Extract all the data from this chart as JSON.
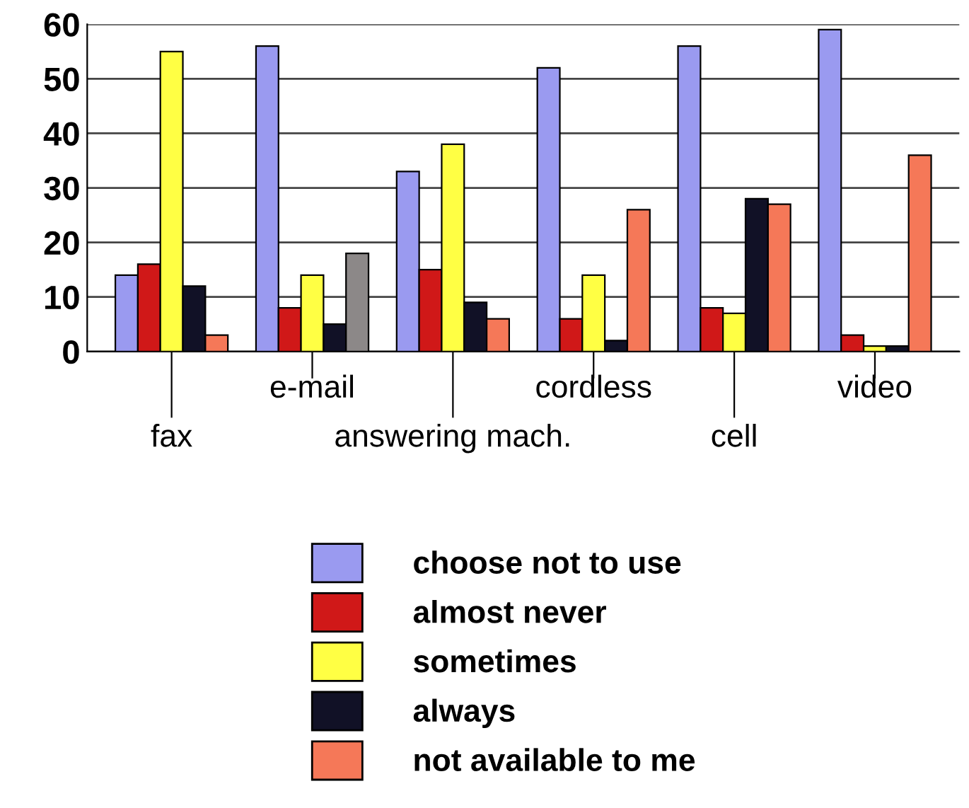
{
  "chart_data": {
    "type": "bar",
    "categories": [
      "fax",
      "e-mail",
      "answering mach.",
      "cordless",
      "cell",
      "video"
    ],
    "series": [
      {
        "name": "choose not to use",
        "color": "#9a9af0",
        "values": [
          14,
          56,
          33,
          52,
          56,
          59
        ]
      },
      {
        "name": "almost never",
        "color": "#d01818",
        "values": [
          16,
          8,
          15,
          6,
          8,
          3
        ]
      },
      {
        "name": "sometimes",
        "color": "#ffff44",
        "values": [
          55,
          14,
          38,
          14,
          7,
          1
        ]
      },
      {
        "name": "always",
        "color": "#111126",
        "values": [
          12,
          5,
          9,
          2,
          28,
          1
        ]
      },
      {
        "name": "not available to me",
        "color": "#f57858",
        "colors": [
          "#f57858",
          "#8c8888",
          "#f57858",
          "#f57858",
          "#f57858",
          "#f57858"
        ],
        "values": [
          3,
          18,
          6,
          26,
          27,
          36
        ]
      }
    ],
    "ylim": [
      0,
      60
    ],
    "yticks": [
      0,
      10,
      20,
      30,
      40,
      50,
      60
    ],
    "grid": "y",
    "legend": "bottom"
  }
}
